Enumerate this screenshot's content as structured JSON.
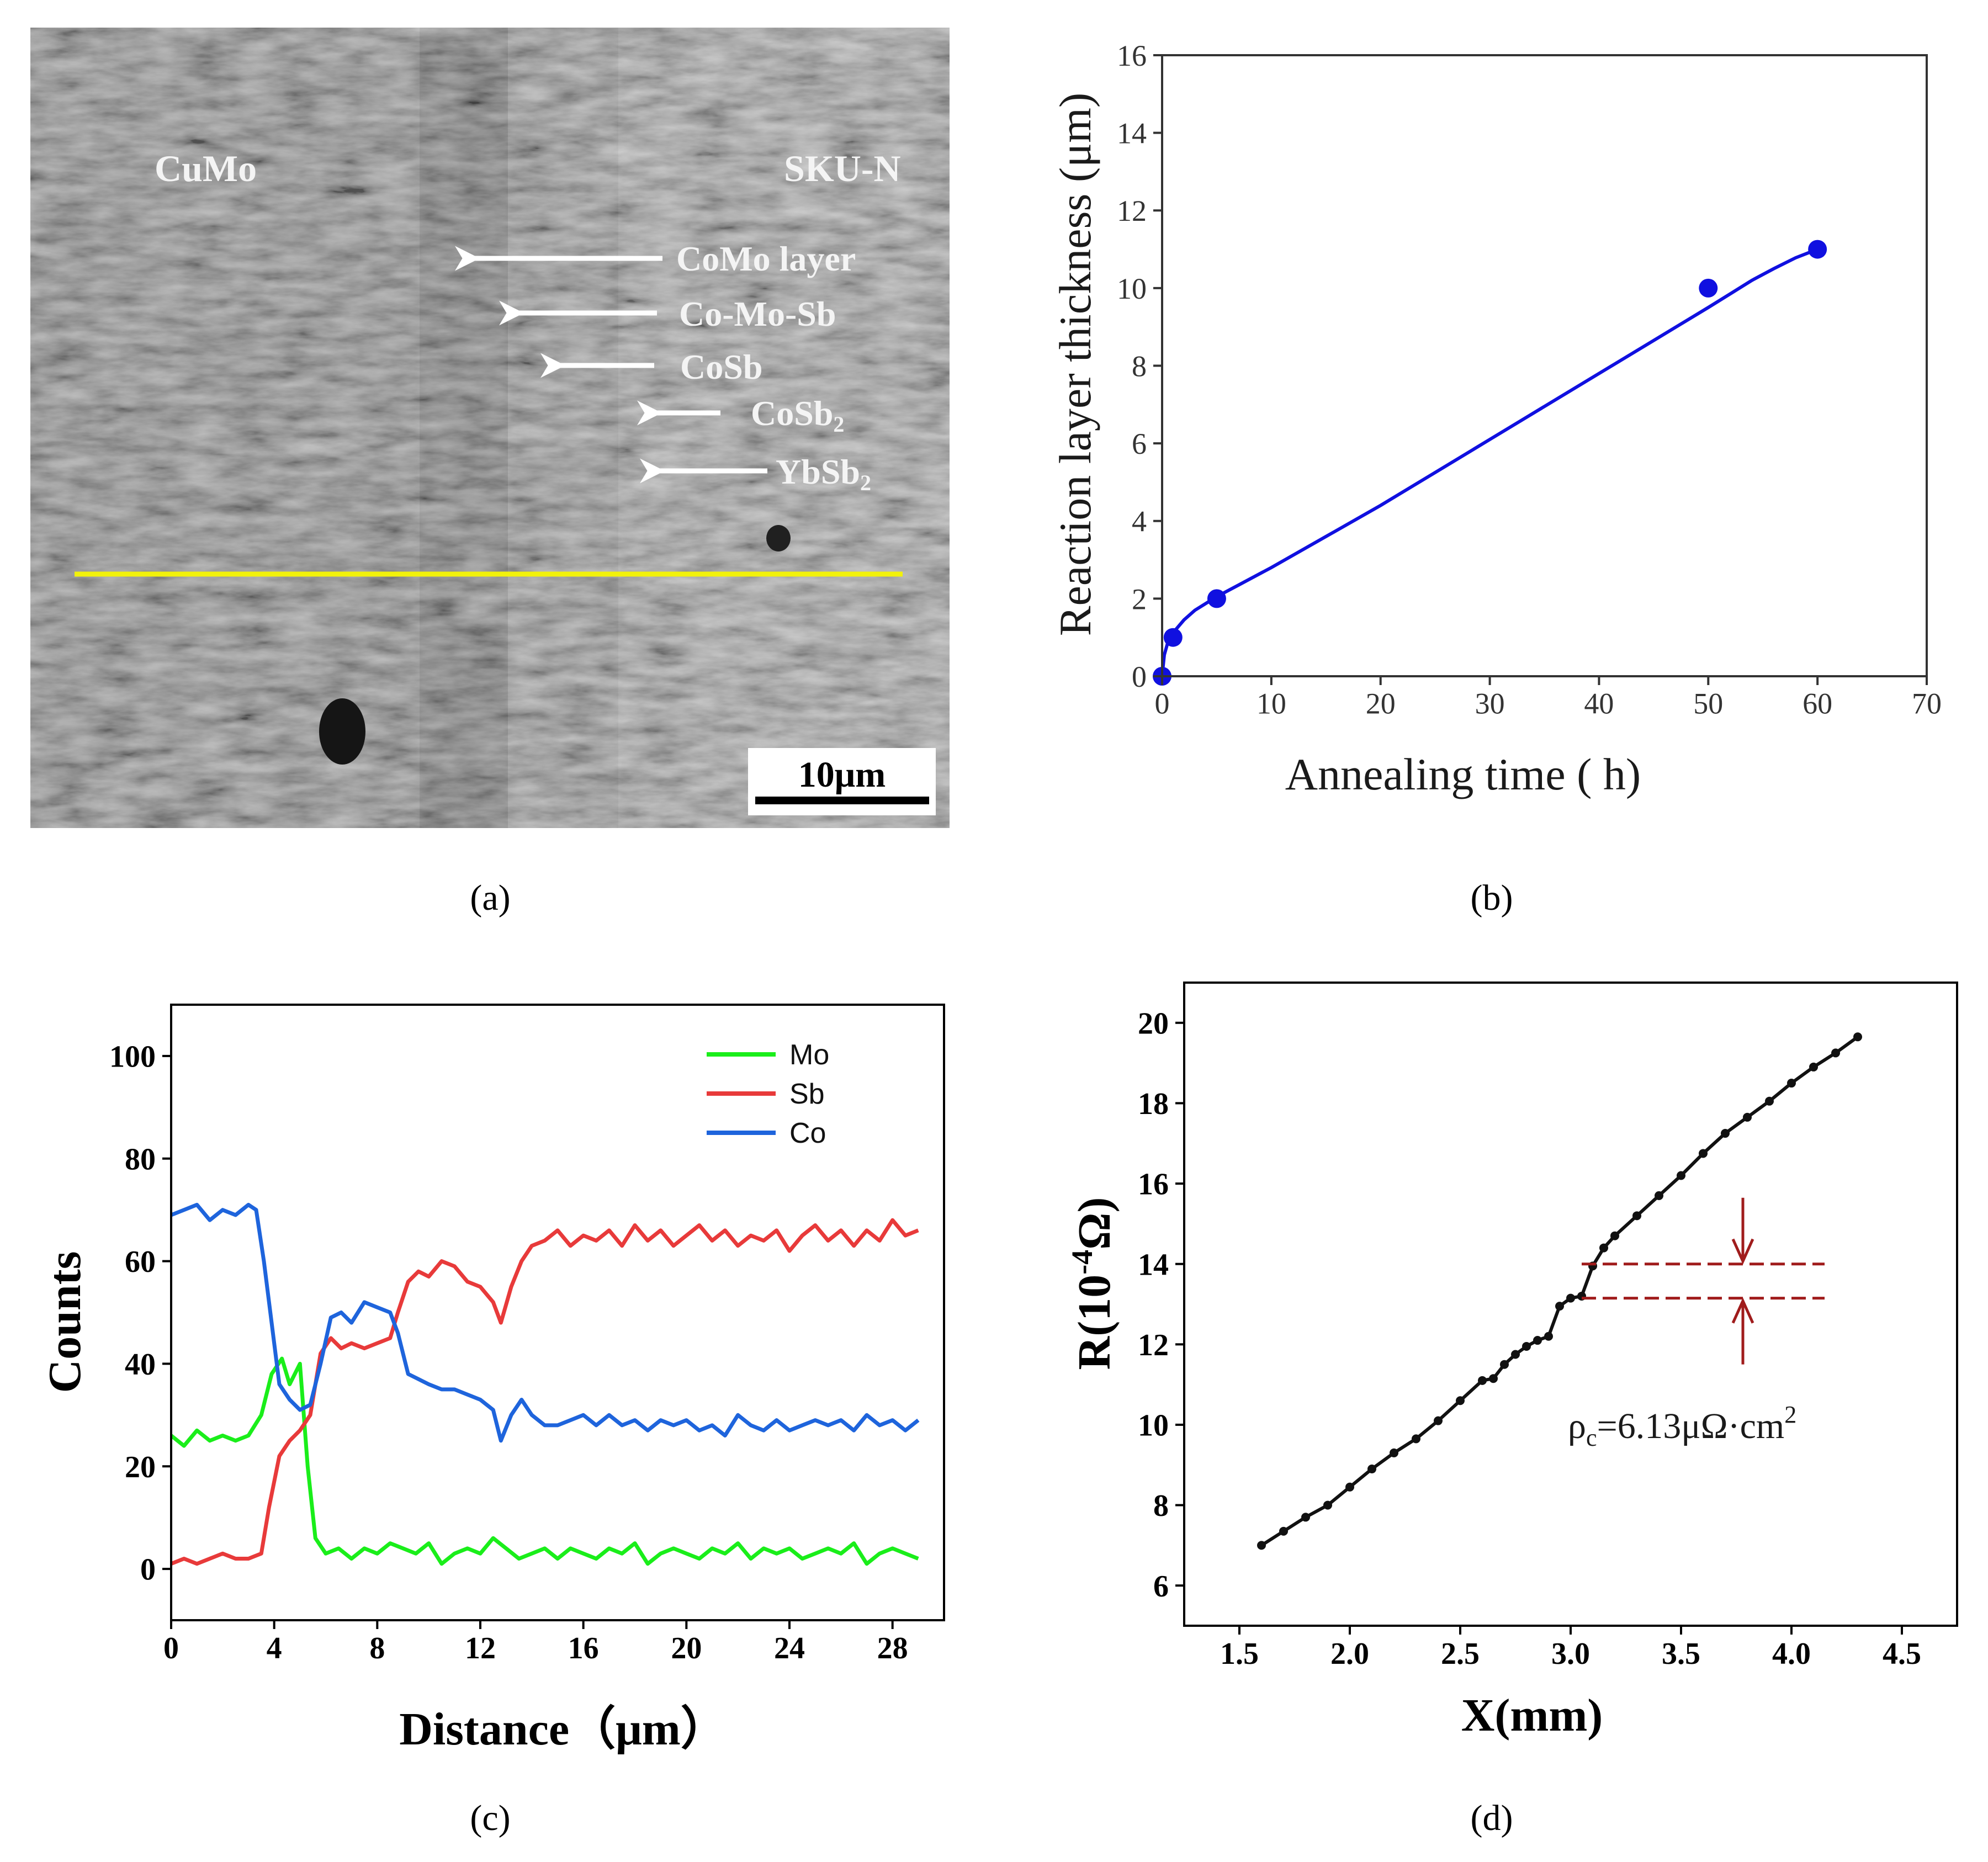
{
  "panel_labels": {
    "a": "(a)",
    "b": "(b)",
    "c": "(c)",
    "d": "(d)"
  },
  "micrograph": {
    "left_label": "CuMo",
    "right_label": "SKU-N",
    "arrow_labels": [
      "CoMo layer",
      "Co-Mo-Sb",
      "CoSb",
      "CoSb",
      "YbSb"
    ],
    "arrow_label_subscripts": [
      "",
      "",
      "",
      "2",
      "2"
    ],
    "scale_bar_label": "10μm",
    "line_scan_color": "#f2f20a"
  },
  "chart_data": [
    {
      "id": "b",
      "type": "scatter",
      "xlabel": "Annealing time ( h)",
      "ylabel": "Reaction layer thickness (μm)",
      "xlim": [
        0,
        70
      ],
      "ylim": [
        0,
        16
      ],
      "xticks": [
        0,
        10,
        20,
        30,
        40,
        50,
        60,
        70
      ],
      "yticks": [
        0,
        2,
        4,
        6,
        8,
        10,
        12,
        14,
        16
      ],
      "points": {
        "x": [
          0,
          1,
          5,
          50,
          60
        ],
        "y": [
          0,
          1,
          2,
          10,
          11
        ]
      },
      "fit": {
        "x": [
          0,
          0.2,
          0.5,
          1,
          2,
          3,
          5,
          7,
          10,
          15,
          20,
          25,
          30,
          35,
          40,
          45,
          50,
          52,
          54,
          56,
          58,
          60
        ],
        "y": [
          0,
          0.55,
          0.85,
          1.12,
          1.45,
          1.7,
          2.05,
          2.35,
          2.8,
          3.6,
          4.4,
          5.25,
          6.1,
          6.95,
          7.8,
          8.65,
          9.5,
          9.85,
          10.2,
          10.5,
          10.78,
          11.0
        ]
      },
      "color": "#1010e0",
      "grid": false
    },
    {
      "id": "c",
      "type": "line",
      "xlabel": "Distance（μm）",
      "ylabel": "Counts",
      "xlim": [
        0,
        30
      ],
      "ylim": [
        -10,
        110
      ],
      "xticks": [
        0,
        4,
        8,
        12,
        16,
        20,
        24,
        28
      ],
      "yticks": [
        0,
        20,
        40,
        60,
        80,
        100
      ],
      "legend_position": "top-right",
      "series": [
        {
          "name": "Mo",
          "color": "#1aee1a",
          "x": [
            0,
            0.5,
            1,
            1.5,
            2,
            2.5,
            3,
            3.5,
            3.9,
            4.3,
            4.6,
            5,
            5.3,
            5.6,
            6,
            6.5,
            7,
            7.5,
            8,
            8.5,
            9,
            9.5,
            10,
            10.5,
            11,
            11.5,
            12,
            12.5,
            13,
            13.5,
            14,
            14.5,
            15,
            15.5,
            16,
            16.5,
            17,
            17.5,
            18,
            18.5,
            19,
            19.5,
            20,
            20.5,
            21,
            21.5,
            22,
            22.5,
            23,
            23.5,
            24,
            24.5,
            25,
            25.5,
            26,
            26.5,
            27,
            27.5,
            28,
            28.5,
            29
          ],
          "y": [
            26,
            24,
            27,
            25,
            26,
            25,
            26,
            30,
            38,
            41,
            36,
            40,
            20,
            6,
            3,
            4,
            2,
            4,
            3,
            5,
            4,
            3,
            5,
            1,
            3,
            4,
            3,
            6,
            4,
            2,
            3,
            4,
            2,
            4,
            3,
            2,
            4,
            3,
            5,
            1,
            3,
            4,
            3,
            2,
            4,
            3,
            5,
            2,
            4,
            3,
            4,
            2,
            3,
            4,
            3,
            5,
            1,
            3,
            4,
            3,
            2
          ]
        },
        {
          "name": "Sb",
          "color": "#e83a3a",
          "x": [
            0,
            0.5,
            1,
            1.5,
            2,
            2.5,
            3,
            3.5,
            3.8,
            4.2,
            4.6,
            5,
            5.4,
            5.8,
            6.2,
            6.6,
            7,
            7.5,
            8,
            8.5,
            8.8,
            9.2,
            9.6,
            10,
            10.5,
            11,
            11.5,
            12,
            12.5,
            12.8,
            13.2,
            13.6,
            14,
            14.5,
            15,
            15.5,
            16,
            16.5,
            17,
            17.5,
            18,
            18.5,
            19,
            19.5,
            20,
            20.5,
            21,
            21.5,
            22,
            22.5,
            23,
            23.5,
            24,
            24.5,
            25,
            25.5,
            26,
            26.5,
            27,
            27.5,
            28,
            28.5,
            29
          ],
          "y": [
            1,
            2,
            1,
            2,
            3,
            2,
            2,
            3,
            12,
            22,
            25,
            27,
            30,
            42,
            45,
            43,
            44,
            43,
            44,
            45,
            50,
            56,
            58,
            57,
            60,
            59,
            56,
            55,
            52,
            48,
            55,
            60,
            63,
            64,
            66,
            63,
            65,
            64,
            66,
            63,
            67,
            64,
            66,
            63,
            65,
            67,
            64,
            66,
            63,
            65,
            64,
            66,
            62,
            65,
            67,
            64,
            66,
            63,
            66,
            64,
            68,
            65,
            66
          ]
        },
        {
          "name": "Co",
          "color": "#1e64dc",
          "x": [
            0,
            0.5,
            1,
            1.5,
            2,
            2.5,
            3,
            3.3,
            3.6,
            3.9,
            4.2,
            4.6,
            5,
            5.4,
            5.8,
            6.2,
            6.6,
            7,
            7.5,
            8,
            8.5,
            8.8,
            9.2,
            9.6,
            10,
            10.5,
            11,
            11.5,
            12,
            12.5,
            12.8,
            13.2,
            13.6,
            14,
            14.5,
            15,
            15.5,
            16,
            16.5,
            17,
            17.5,
            18,
            18.5,
            19,
            19.5,
            20,
            20.5,
            21,
            21.5,
            22,
            22.5,
            23,
            23.5,
            24,
            24.5,
            25,
            25.5,
            26,
            26.5,
            27,
            27.5,
            28,
            28.5,
            29
          ],
          "y": [
            69,
            70,
            71,
            68,
            70,
            69,
            71,
            70,
            60,
            48,
            36,
            33,
            31,
            32,
            40,
            49,
            50,
            48,
            52,
            51,
            50,
            46,
            38,
            37,
            36,
            35,
            35,
            34,
            33,
            31,
            25,
            30,
            33,
            30,
            28,
            28,
            29,
            30,
            28,
            30,
            28,
            29,
            27,
            29,
            28,
            29,
            27,
            28,
            26,
            30,
            28,
            27,
            29,
            27,
            28,
            29,
            28,
            29,
            27,
            30,
            28,
            29,
            27,
            29
          ]
        }
      ],
      "grid": false
    },
    {
      "id": "d",
      "type": "line",
      "xlabel": "X(mm)",
      "ylabel": "R(10",
      "ylabel_sup": "-4",
      "ylabel_tail": "Ω)",
      "xlim": [
        1.25,
        4.75
      ],
      "ylim": [
        5,
        21
      ],
      "xticks": [
        1.5,
        2.0,
        2.5,
        3.0,
        3.5,
        4.0,
        4.5
      ],
      "xtick_labels": [
        "1.5",
        "2.0",
        "2.5",
        "3.0",
        "3.5",
        "4.0",
        "4.5"
      ],
      "yticks": [
        6,
        8,
        10,
        12,
        14,
        16,
        18,
        20
      ],
      "series": [
        {
          "name": "",
          "color": "#111111",
          "x": [
            1.6,
            1.7,
            1.8,
            1.9,
            2.0,
            2.1,
            2.2,
            2.3,
            2.4,
            2.5,
            2.6,
            2.65,
            2.7,
            2.75,
            2.8,
            2.85,
            2.9,
            2.95,
            3.0,
            3.05,
            3.1,
            3.15,
            3.2,
            3.3,
            3.4,
            3.5,
            3.6,
            3.7,
            3.8,
            3.9,
            4.0,
            4.1,
            4.2,
            4.3
          ],
          "y": [
            7.0,
            7.35,
            7.7,
            8.0,
            8.45,
            8.9,
            9.3,
            9.65,
            10.1,
            10.6,
            11.1,
            11.15,
            11.5,
            11.75,
            11.95,
            12.1,
            12.2,
            12.95,
            13.15,
            13.2,
            13.95,
            14.4,
            14.7,
            15.2,
            15.7,
            16.2,
            16.75,
            17.25,
            17.65,
            18.05,
            18.5,
            18.9,
            19.25,
            19.65
          ]
        }
      ],
      "annotation": {
        "text": "ρ",
        "text_sub": "c",
        "text_tail": "=6.13μΩ·cm",
        "text_sup": "2",
        "upper_line_y": 14.0,
        "lower_line_y": 13.15,
        "line_x": [
          3.05,
          4.15
        ],
        "arrow_x": 3.78,
        "color": "#a01c1c"
      },
      "grid": false
    }
  ]
}
